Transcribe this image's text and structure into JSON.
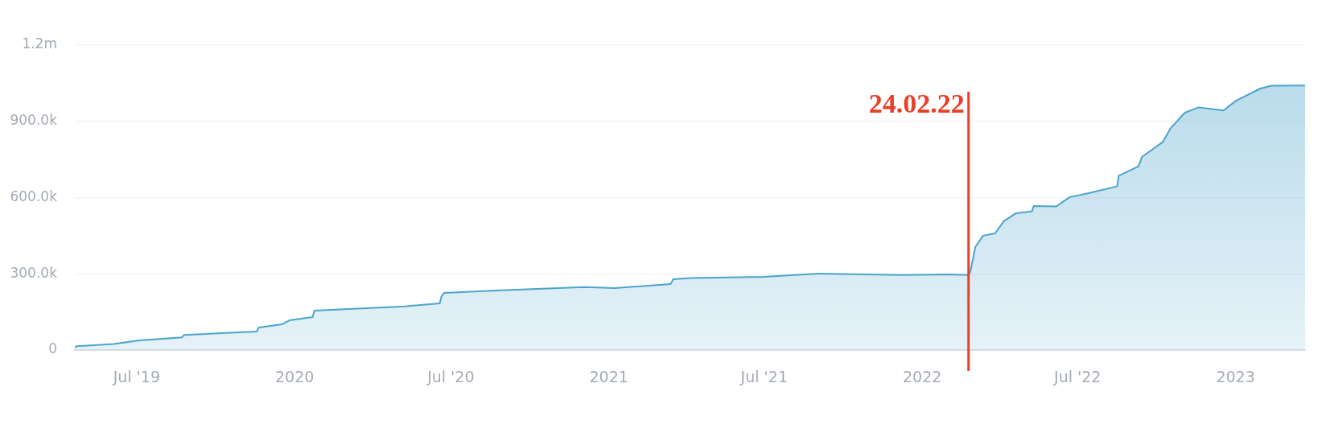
{
  "chart_data": {
    "type": "area",
    "x": [
      "2019-04-20",
      "2019-04-22",
      "2019-06-04",
      "2019-07-04",
      "2019-08-23",
      "2019-08-25",
      "2019-11-18",
      "2019-11-20",
      "2019-12-17",
      "2019-12-26",
      "2020-01-22",
      "2020-01-24",
      "2020-05-08",
      "2020-06-18",
      "2020-06-20",
      "2020-06-23",
      "2020-08-28",
      "2020-12-03",
      "2021-01-08",
      "2021-03-14",
      "2021-03-17",
      "2021-04-06",
      "2021-06-30",
      "2021-09-03",
      "2021-12-08",
      "2022-02-01",
      "2022-02-23",
      "2022-02-26",
      "2022-03-04",
      "2022-03-13",
      "2022-03-27",
      "2022-04-06",
      "2022-04-20",
      "2022-05-09",
      "2022-05-11",
      "2022-06-06",
      "2022-06-22",
      "2022-07-11",
      "2022-08-16",
      "2022-08-18",
      "2022-09-10",
      "2022-09-14",
      "2022-10-08",
      "2022-10-17",
      "2022-11-03",
      "2022-11-19",
      "2022-12-18",
      "2023-01-02",
      "2023-01-30",
      "2023-02-12",
      "2023-03-23"
    ],
    "series": [
      {
        "color": "#4ba3cb",
        "values": [
          10000,
          15000,
          24000,
          38000,
          50000,
          59000,
          73000,
          89000,
          101000,
          117000,
          130000,
          155000,
          172000,
          184000,
          210000,
          225000,
          235000,
          248000,
          244000,
          260000,
          279000,
          283000,
          288000,
          301000,
          295000,
          298000,
          295000,
          307000,
          406000,
          450000,
          459000,
          507000,
          538000,
          546000,
          567000,
          565000,
          602000,
          615000,
          644000,
          686000,
          723000,
          760000,
          818000,
          871000,
          934000,
          955000,
          943000,
          982000,
          1029000,
          1040000,
          1041000
        ]
      }
    ],
    "xlim": [
      "2019-04-20",
      "2023-03-23"
    ],
    "xticks": [
      {
        "value": "2019-07-01",
        "label": "Jul '19"
      },
      {
        "value": "2020-01-01",
        "label": "2020"
      },
      {
        "value": "2020-07-01",
        "label": "Jul '20"
      },
      {
        "value": "2021-01-01",
        "label": "2021"
      },
      {
        "value": "2021-07-01",
        "label": "Jul '21"
      },
      {
        "value": "2022-01-01",
        "label": "2022"
      },
      {
        "value": "2022-07-01",
        "label": "Jul '22"
      },
      {
        "value": "2023-01-01",
        "label": "2023"
      }
    ],
    "ylim": [
      0,
      1200000
    ],
    "yticks": [
      {
        "value": 0,
        "label": "0"
      },
      {
        "value": 300000,
        "label": "300.0k"
      },
      {
        "value": 600000,
        "label": "600.0k"
      },
      {
        "value": 900000,
        "label": "900.0k"
      },
      {
        "value": 1200000,
        "label": "1.2m"
      }
    ],
    "grid": "y",
    "ref_lines": [
      {
        "axis": "x",
        "value": "2022-02-24",
        "label": "24.02.22",
        "color": "#e8402a"
      }
    ]
  }
}
